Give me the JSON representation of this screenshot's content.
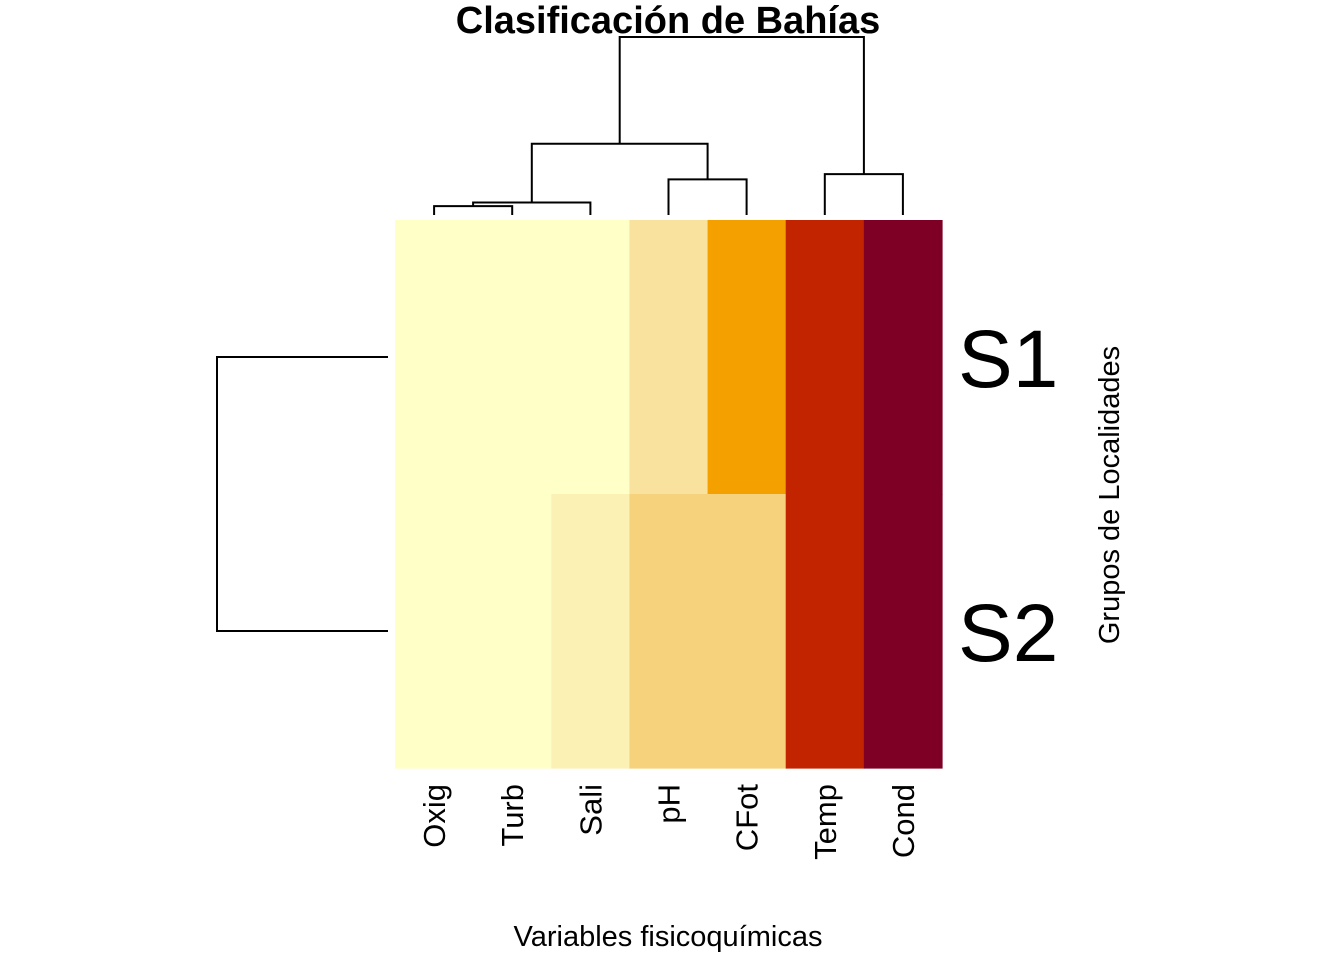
{
  "chart_data": {
    "type": "heatmap",
    "title": "Clasificación de Bahías",
    "xlabel": "Variables fisicoquímicas",
    "ylabel": "Grupos de Localidades",
    "columns": [
      "Oxig",
      "Turb",
      "Sali",
      "pH",
      "CFot",
      "Temp",
      "Cond"
    ],
    "rows": [
      "S1",
      "S2"
    ],
    "cell_colors": [
      [
        "#FFFFC8",
        "#FFFFC8",
        "#FFFFC8",
        "#F9E29D",
        "#F4A100",
        "#C22400",
        "#7F0025"
      ],
      [
        "#FFFFC8",
        "#FFFFC8",
        "#FCF1B5",
        "#F5D27B",
        "#F5D27B",
        "#C22400",
        "#7F0025"
      ]
    ],
    "color_scale": "heat (light yellow = low, dark red = high)",
    "column_dendrogram": [
      {
        "merge": [
          "Oxig",
          "Turb"
        ],
        "height": 0.05
      },
      {
        "merge": [
          "Oxig+Turb",
          "Sali"
        ],
        "height": 0.07
      },
      {
        "merge": [
          "pH",
          "CFot"
        ],
        "height": 0.2
      },
      {
        "merge": [
          "Temp",
          "Cond"
        ],
        "height": 0.23
      },
      {
        "merge": [
          "Oxig+Turb+Sali",
          "pH+CFot"
        ],
        "height": 0.4
      },
      {
        "merge": [
          "Oxig+Turb+Sali+pH+CFot",
          "Temp+Cond"
        ],
        "height": 1.0
      }
    ],
    "row_dendrogram": [
      {
        "merge": [
          "S1",
          "S2"
        ],
        "height": 1.0
      }
    ]
  },
  "colors": {
    "background": "#FFFFFF",
    "line": "#000000"
  }
}
